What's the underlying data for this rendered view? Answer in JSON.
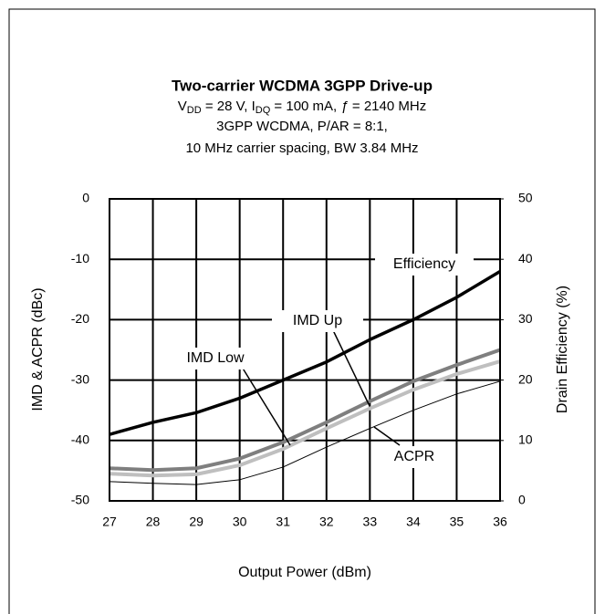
{
  "chart_data": {
    "type": "line",
    "title": "Two-carrier WCDMA 3GPP Drive-up",
    "subtitle_line1": [
      "V",
      "DD",
      " = 28 V, I",
      "DQ",
      " = 100 mA, ",
      "ƒ",
      " = 2140 MHz"
    ],
    "subtitle_line2": "3GPP WCDMA, P/AR = 8:1,",
    "subtitle_line3": "10 MHz carrier spacing,  BW 3.84 MHz",
    "xlabel": "Output Power (dBm)",
    "ylabel": "IMD & ACPR (dBc)",
    "y2label": "Drain Efficiency (%)",
    "x": [
      27,
      28,
      29,
      30,
      31,
      32,
      33,
      34,
      35,
      36
    ],
    "xlim": [
      27,
      36
    ],
    "xticks": [
      27,
      28,
      29,
      30,
      31,
      32,
      33,
      34,
      35,
      36
    ],
    "ylim": [
      -50,
      0
    ],
    "yticks": [
      0,
      -10,
      -20,
      -30,
      -40,
      -50
    ],
    "y2lim": [
      0,
      50
    ],
    "y2ticks": [
      0,
      10,
      20,
      30,
      40,
      50
    ],
    "grid": true,
    "series": [
      {
        "name": "Efficiency",
        "color": "#000000",
        "width": 3.5,
        "axis": "y2",
        "values": [
          11,
          13,
          14.6,
          17,
          20,
          23,
          26.7,
          30,
          33.7,
          38
        ]
      },
      {
        "name": "IMD Up",
        "color": "#7f7f7f",
        "width": 4,
        "values": [
          -44.6,
          -44.9,
          -44.6,
          -43,
          -40.3,
          -37,
          -33.5,
          -30.2,
          -27.5,
          -25
        ]
      },
      {
        "name": "IMD Low",
        "color": "#bfbfbf",
        "width": 4,
        "values": [
          -45.5,
          -45.8,
          -45.6,
          -44.1,
          -41.4,
          -38,
          -34.7,
          -31.6,
          -29,
          -26.9
        ]
      },
      {
        "name": "ACPR",
        "color": "#000000",
        "width": 1,
        "values": [
          -46.8,
          -47.1,
          -47.3,
          -46.5,
          -44.4,
          -41.1,
          -38,
          -35,
          -32.3,
          -30.2
        ]
      }
    ]
  }
}
